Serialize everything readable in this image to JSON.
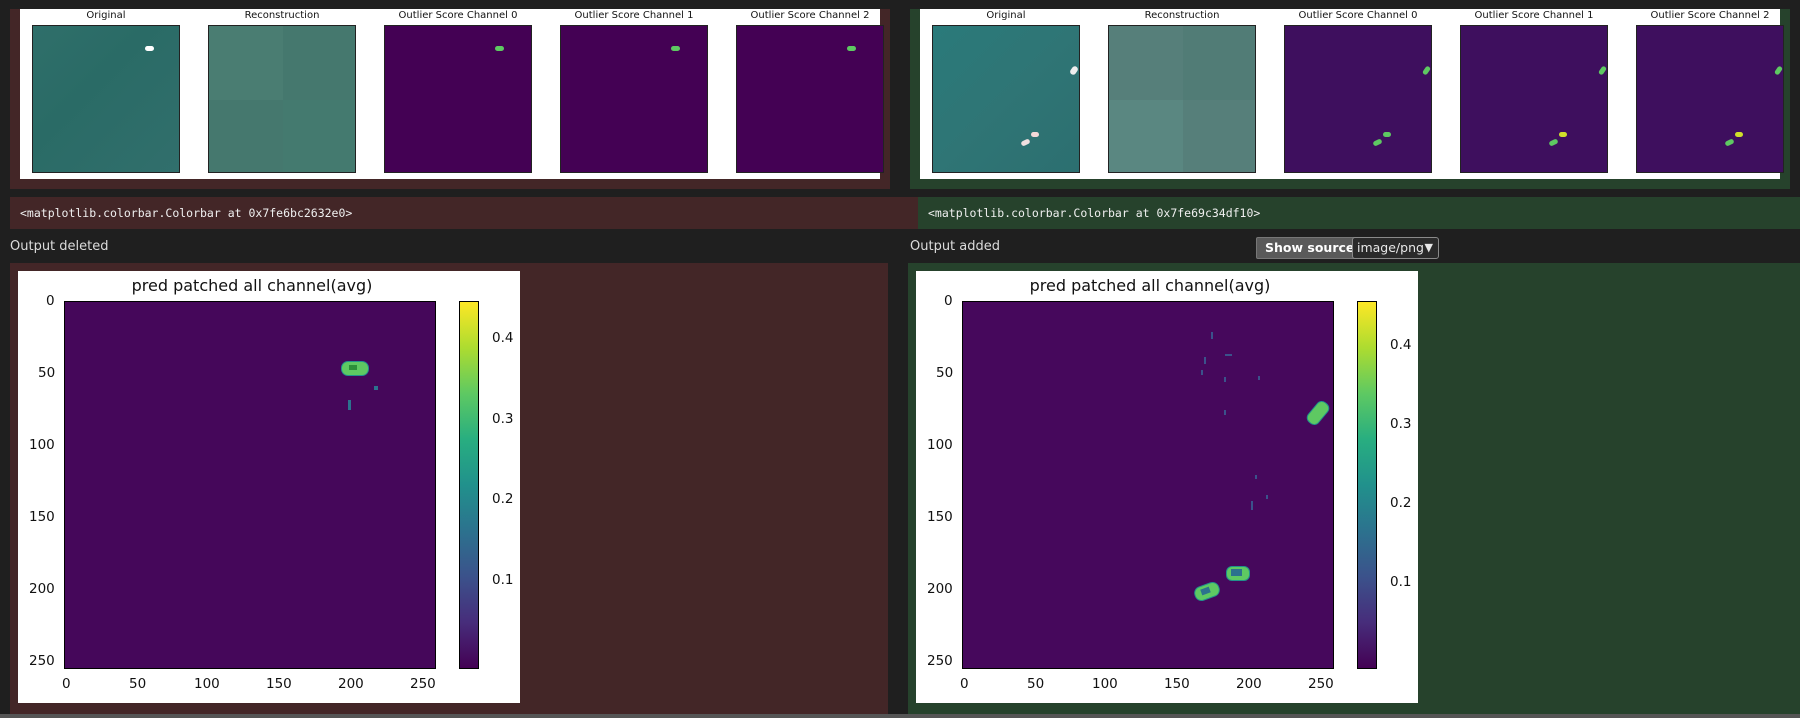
{
  "left": {
    "thumbs": [
      "Original",
      "Reconstruction",
      "Outlier Score Channel 0",
      "Outlier Score Channel 1",
      "Outlier Score Channel 2"
    ],
    "code": "<matplotlib.colorbar.Colorbar at 0x7fe6bc2632e0>",
    "output_label": "Output deleted",
    "plot": {
      "title": "pred patched all channel(avg)",
      "yticks": [
        "0",
        "50",
        "100",
        "150",
        "200",
        "250"
      ],
      "xticks": [
        "0",
        "50",
        "100",
        "150",
        "200",
        "250"
      ],
      "cticks": [
        "0.4",
        "0.3",
        "0.2",
        "0.1"
      ]
    }
  },
  "right": {
    "thumbs": [
      "Original",
      "Reconstruction",
      "Outlier Score Channel 0",
      "Outlier Score Channel 1",
      "Outlier Score Channel 2"
    ],
    "code": "<matplotlib.colorbar.Colorbar at 0x7fe69c34df10>",
    "output_label": "Output added",
    "plot": {
      "title": "pred patched all channel(avg)",
      "yticks": [
        "0",
        "50",
        "100",
        "150",
        "200",
        "250"
      ],
      "xticks": [
        "0",
        "50",
        "100",
        "150",
        "200",
        "250"
      ],
      "cticks": [
        "0.4",
        "0.3",
        "0.2",
        "0.1"
      ]
    }
  },
  "toolbar": {
    "show_source_label": "Show source",
    "mime_type": "image/png",
    "chevron_icon": "chevron-down-icon"
  },
  "colors": {
    "deleted_bg": "#432627",
    "added_bg": "#26422c",
    "viridis_low": "#440154",
    "viridis_high": "#fde725"
  }
}
